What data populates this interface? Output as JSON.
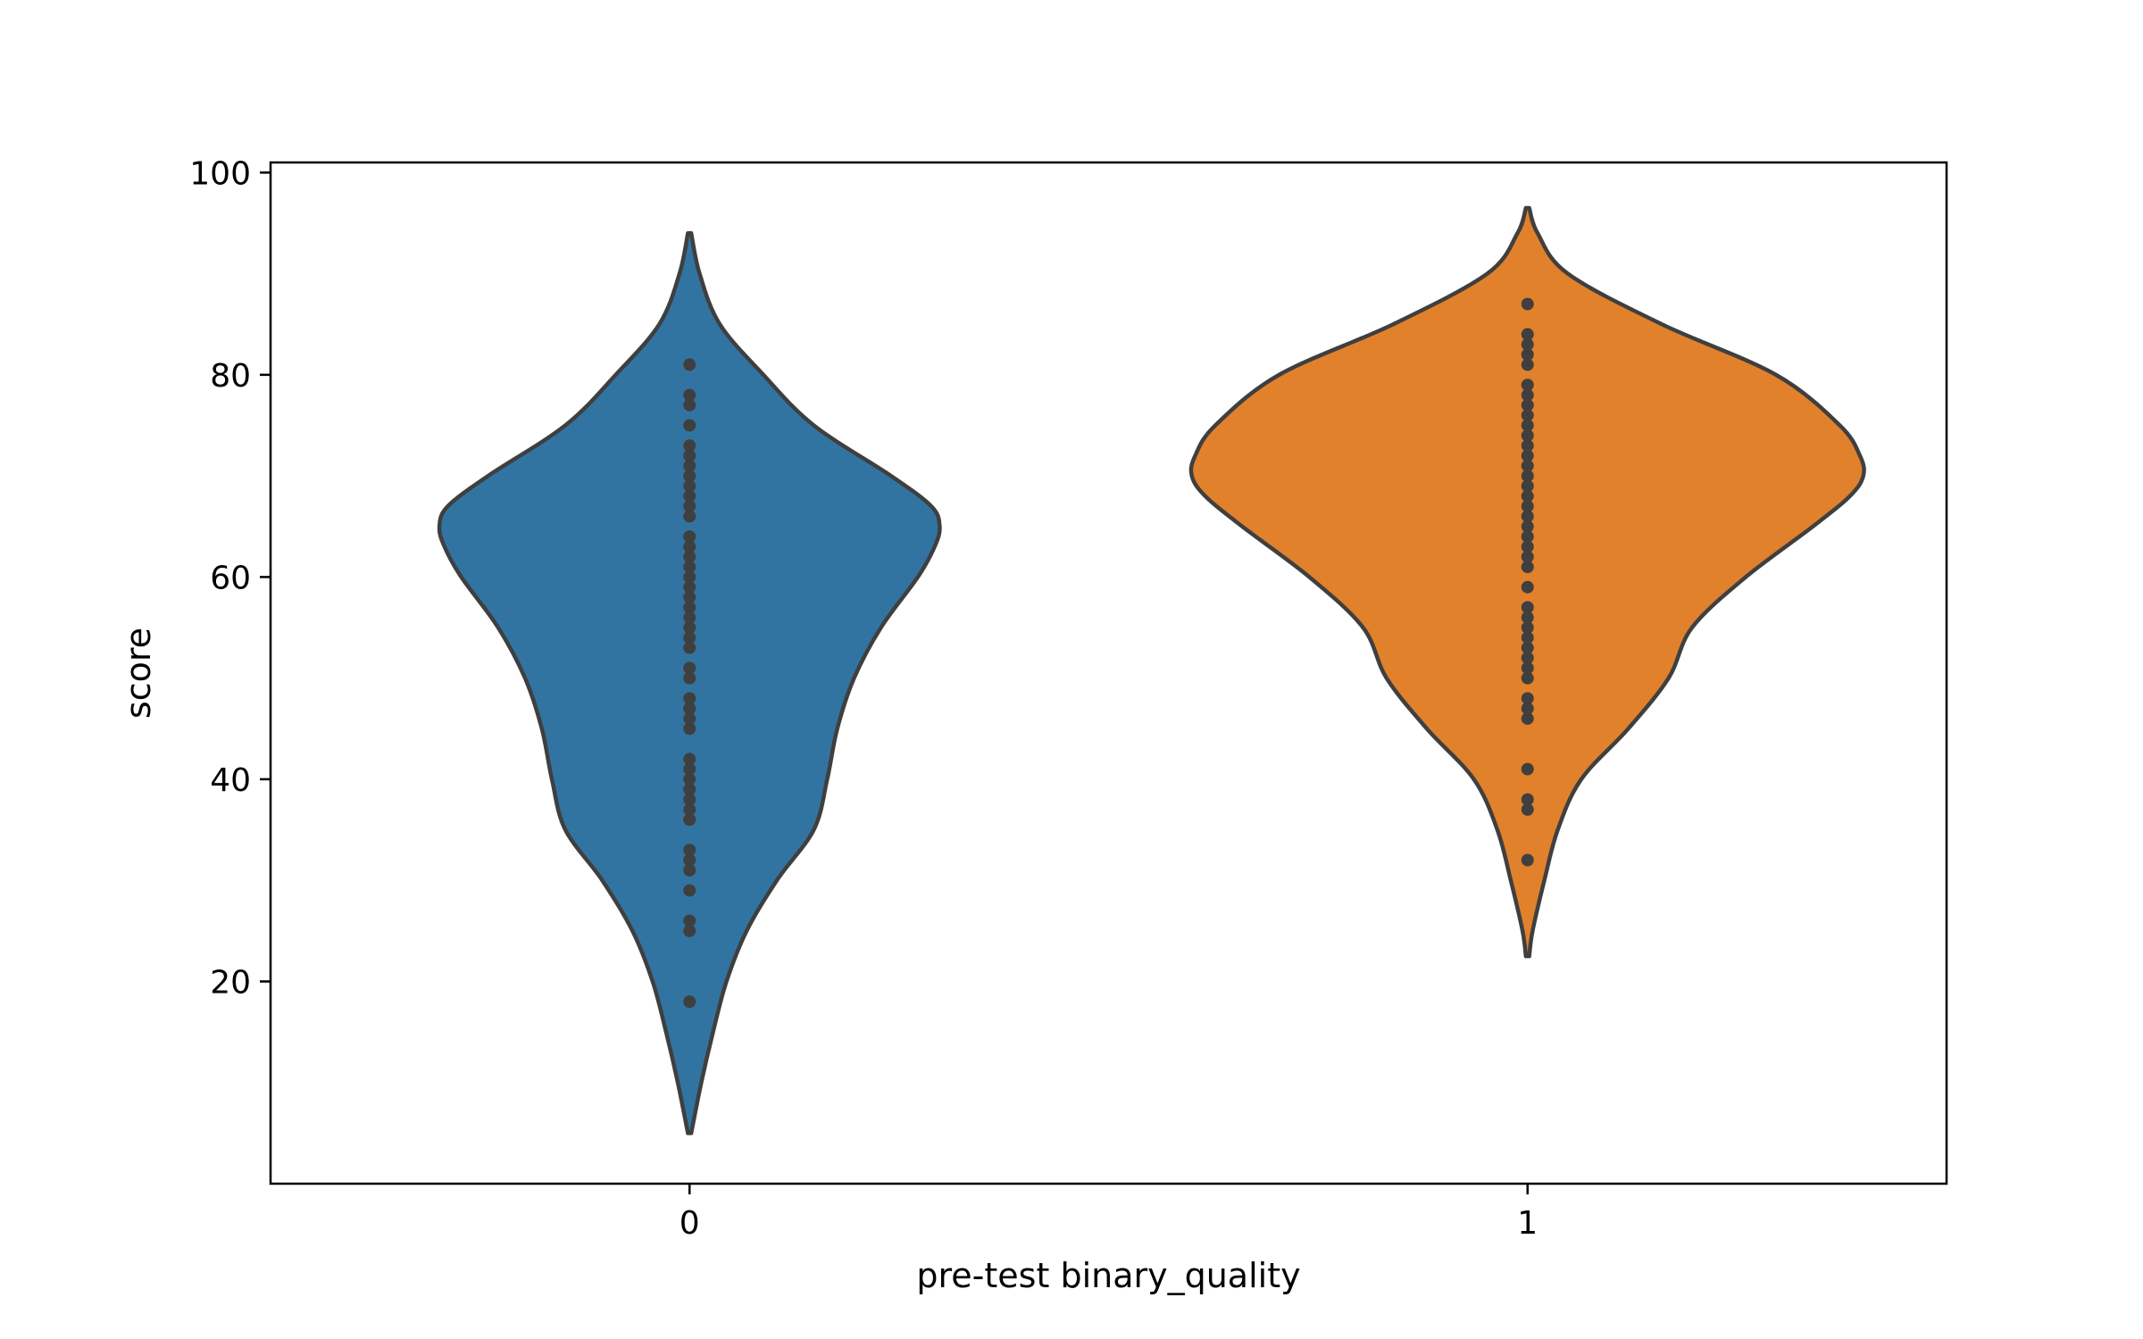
{
  "chart_data": {
    "type": "violin",
    "title": "",
    "xlabel": "pre-test binary_quality",
    "ylabel": "score",
    "categories": [
      "0",
      "1"
    ],
    "ylim": [
      0,
      101
    ],
    "yticks": [
      20,
      40,
      60,
      80,
      100
    ],
    "grid": false,
    "legend": "none",
    "series": [
      {
        "category": "0",
        "color": "#3274a1",
        "density_profile": [
          [
            5,
            0.005
          ],
          [
            10,
            0.035
          ],
          [
            15,
            0.07
          ],
          [
            20,
            0.11
          ],
          [
            25,
            0.17
          ],
          [
            30,
            0.26
          ],
          [
            35,
            0.37
          ],
          [
            40,
            0.41
          ],
          [
            45,
            0.44
          ],
          [
            50,
            0.49
          ],
          [
            55,
            0.57
          ],
          [
            60,
            0.68
          ],
          [
            63,
            0.73
          ],
          [
            65,
            0.745
          ],
          [
            67,
            0.72
          ],
          [
            70,
            0.6
          ],
          [
            75,
            0.37
          ],
          [
            80,
            0.22
          ],
          [
            85,
            0.09
          ],
          [
            90,
            0.03
          ],
          [
            94,
            0.005
          ]
        ],
        "points": [
          18,
          25,
          26,
          29,
          31,
          32,
          33,
          36,
          37,
          38,
          39,
          40,
          41,
          42,
          45,
          46,
          47,
          48,
          50,
          51,
          53,
          54,
          55,
          56,
          57,
          58,
          59,
          60,
          61,
          62,
          63,
          64,
          66,
          67,
          68,
          69,
          70,
          71,
          72,
          73,
          75,
          77,
          78,
          81
        ]
      },
      {
        "category": "1",
        "color": "#e1812c",
        "density_profile": [
          [
            22.5,
            0.005
          ],
          [
            25,
            0.015
          ],
          [
            30,
            0.05
          ],
          [
            35,
            0.09
          ],
          [
            40,
            0.16
          ],
          [
            45,
            0.3
          ],
          [
            50,
            0.42
          ],
          [
            55,
            0.49
          ],
          [
            60,
            0.65
          ],
          [
            65,
            0.85
          ],
          [
            68,
            0.96
          ],
          [
            70,
            1.0
          ],
          [
            72,
            0.99
          ],
          [
            75,
            0.93
          ],
          [
            80,
            0.74
          ],
          [
            85,
            0.4
          ],
          [
            90,
            0.12
          ],
          [
            94,
            0.03
          ],
          [
            96.5,
            0.005
          ]
        ],
        "points": [
          32,
          37,
          38,
          41,
          46,
          47,
          48,
          50,
          51,
          52,
          53,
          54,
          55,
          56,
          57,
          59,
          61,
          62,
          63,
          64,
          65,
          66,
          67,
          68,
          69,
          70,
          71,
          72,
          73,
          74,
          75,
          76,
          77,
          78,
          79,
          81,
          82,
          83,
          84,
          87
        ]
      }
    ]
  }
}
